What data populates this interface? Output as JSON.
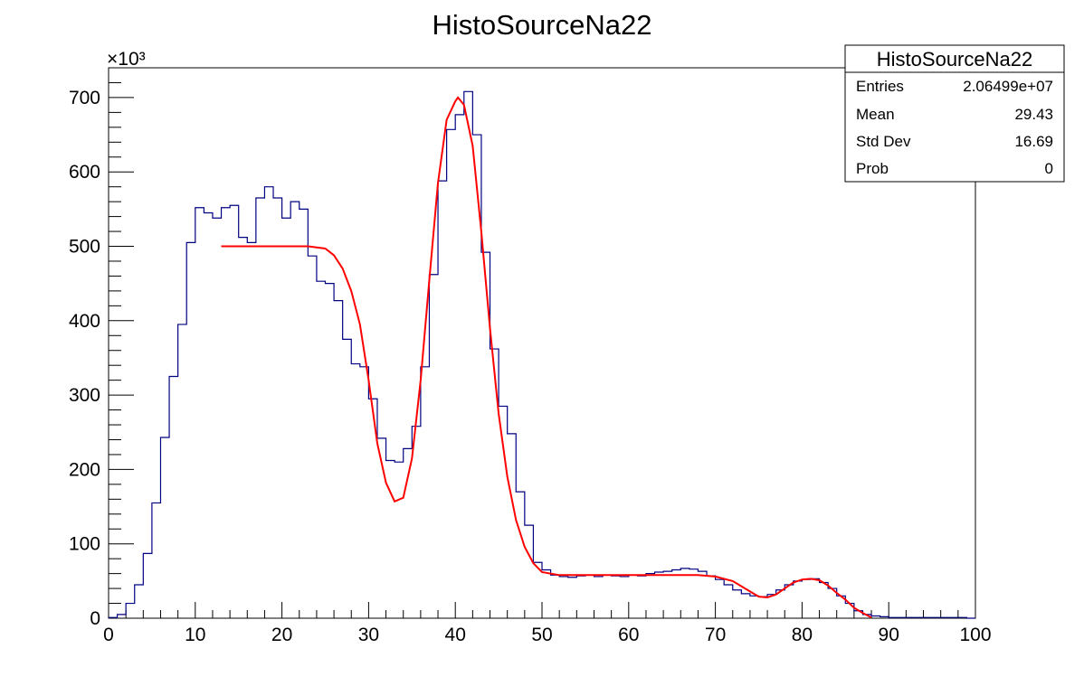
{
  "title": "HistoSourceNa22",
  "stats_box": {
    "title": "HistoSourceNa22",
    "rows": [
      {
        "label": "Entries",
        "value": "2.06499e+07"
      },
      {
        "label": "Mean",
        "value": "29.43"
      },
      {
        "label": "Std Dev",
        "value": "16.69"
      },
      {
        "label": "Prob",
        "value": "0"
      }
    ]
  },
  "colors": {
    "histogram": "#000080",
    "fit": "#ff0000",
    "axis": "#000000"
  },
  "chart_data": {
    "type": "line",
    "title": "HistoSourceNa22",
    "xlabel": "",
    "ylabel": "",
    "y_multiplier": "×10³",
    "xlim": [
      0,
      100
    ],
    "ylim": [
      0,
      740
    ],
    "x_ticks": [
      "0",
      "10",
      "20",
      "30",
      "40",
      "50",
      "60",
      "70",
      "80",
      "90",
      "100"
    ],
    "y_ticks": [
      "0",
      "100",
      "200",
      "300",
      "400",
      "500",
      "600",
      "700"
    ],
    "grid": false,
    "legend": "stats box top-right",
    "series": [
      {
        "style": "histogram",
        "bin_width": 1,
        "bin_start": 0,
        "values": [
          1,
          5,
          20,
          45,
          87,
          155,
          243,
          325,
          395,
          505,
          552,
          545,
          538,
          552,
          555,
          512,
          505,
          565,
          580,
          565,
          538,
          560,
          550,
          487,
          453,
          450,
          427,
          375,
          342,
          338,
          295,
          242,
          212,
          210,
          228,
          258,
          338,
          462,
          588,
          657,
          677,
          708,
          650,
          492,
          362,
          285,
          248,
          170,
          125,
          75,
          65,
          58,
          56,
          55,
          57,
          58,
          56,
          58,
          57,
          56,
          58,
          57,
          60,
          62,
          63,
          65,
          67,
          66,
          63,
          57,
          52,
          45,
          38,
          33,
          30,
          29,
          32,
          38,
          45,
          50,
          52,
          53,
          48,
          40,
          30,
          20,
          10,
          5,
          3,
          2,
          1,
          1,
          1,
          1,
          1,
          1,
          1,
          1,
          1,
          0
        ]
      },
      {
        "style": "fit",
        "x": [
          13,
          16,
          20,
          23,
          25,
          26,
          27,
          28,
          29,
          30,
          31,
          32,
          33,
          34,
          35,
          36,
          37,
          38,
          39,
          40,
          40.3,
          41,
          42,
          43,
          44,
          45,
          46,
          47,
          48,
          49,
          50,
          52,
          55,
          60,
          65,
          68,
          70,
          72,
          74,
          75,
          76,
          77,
          78,
          79,
          80,
          81,
          82,
          83,
          84,
          85,
          86,
          87,
          88
        ],
        "y": [
          500,
          500,
          500,
          500,
          497,
          488,
          470,
          440,
          395,
          320,
          235,
          182,
          157,
          162,
          215,
          320,
          455,
          585,
          670,
          695,
          700,
          690,
          635,
          520,
          390,
          275,
          190,
          132,
          96,
          74,
          62,
          58,
          58,
          58,
          58,
          58,
          56,
          50,
          36,
          29,
          28,
          32,
          40,
          48,
          52,
          53,
          51,
          44,
          34,
          25,
          14,
          7,
          1
        ]
      }
    ]
  }
}
